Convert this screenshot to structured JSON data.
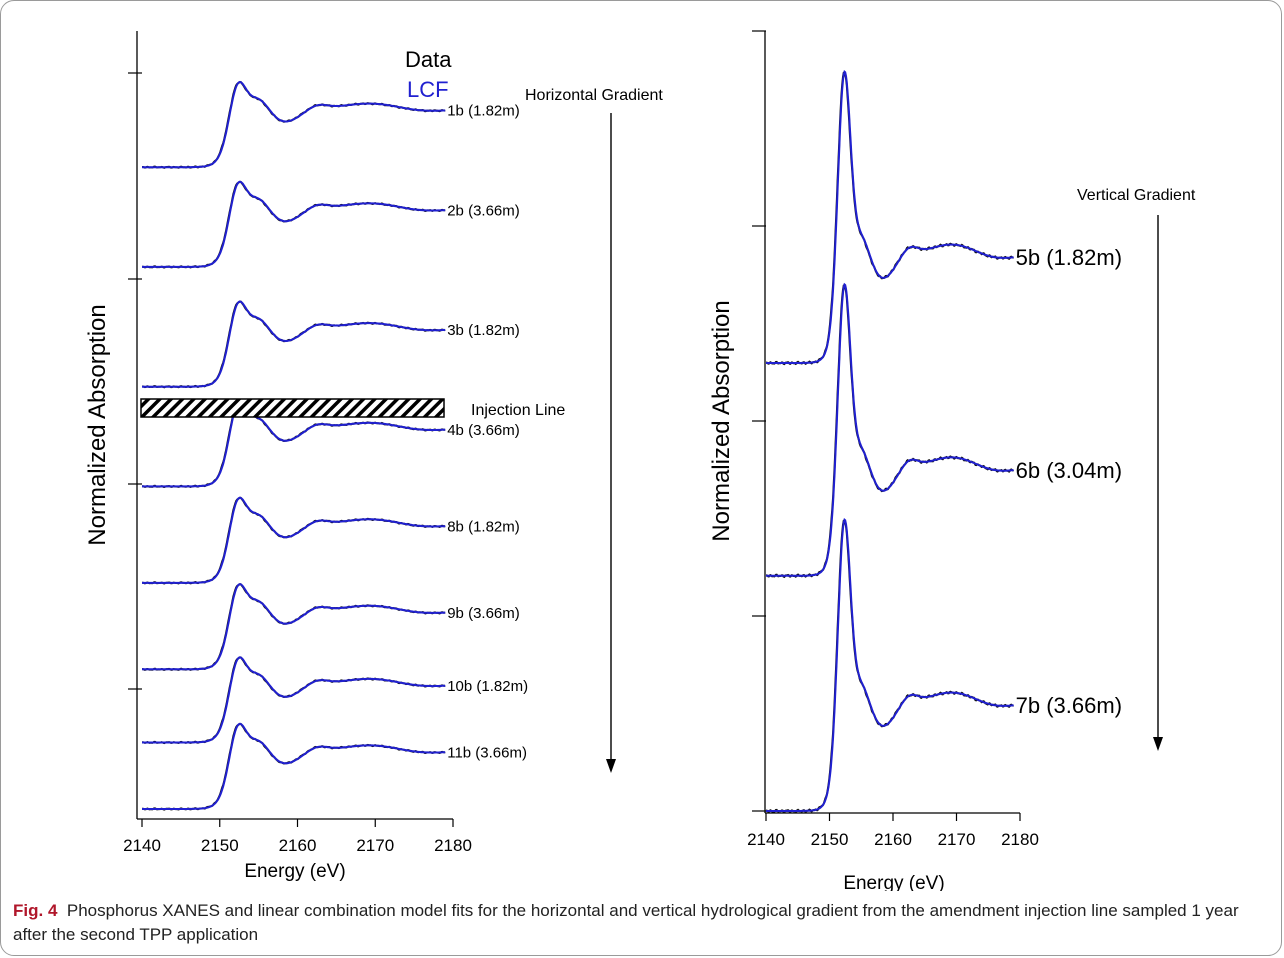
{
  "colors": {
    "data": "#111111",
    "lcf": "#2020d0",
    "axis": "#000000",
    "caption_label": "#b0162a"
  },
  "caption": {
    "label": "Fig. 4",
    "text": "Phosphorus XANES and linear combination model fits for the horizontal and vertical hydrological gradient from the amendment injection line sampled 1 year after the second TPP application"
  },
  "chart_data": [
    {
      "type": "line",
      "xlabel": "Energy (eV)",
      "ylabel": "Normalized Absorption",
      "xlim": [
        2140,
        2180
      ],
      "x_ticks": [
        2140,
        2150,
        2160,
        2170,
        2180
      ],
      "grid": false,
      "legend": {
        "placement": "top-center",
        "entries": [
          {
            "label": "Data",
            "color": "#111111"
          },
          {
            "label": "LCF",
            "color": "#2020d0"
          }
        ]
      },
      "annotations": {
        "gradient": "Horizontal Gradient",
        "injection_line": "Injection Line"
      },
      "series": [
        {
          "name": "1b (1.82m)",
          "edge_peak": 1.55,
          "offset": 4.6
        },
        {
          "name": "2b (3.66m)",
          "edge_peak": 1.55,
          "offset": 3.85
        },
        {
          "name": "3b (1.82m)",
          "edge_peak": 1.55,
          "offset": 3.1
        },
        {
          "name": "4b (3.66m)",
          "edge_peak": 1.55,
          "offset": 2.35
        },
        {
          "name": "8b (1.82m)",
          "edge_peak": 1.55,
          "offset": 1.7
        },
        {
          "name": "9b (3.66m)",
          "edge_peak": 1.55,
          "offset": 1.05
        },
        {
          "name": "10b (1.82m)",
          "edge_peak": 1.55,
          "offset": 0.5
        },
        {
          "name": "11b (3.66m)",
          "edge_peak": 1.55,
          "offset": 0.0
        }
      ]
    },
    {
      "type": "line",
      "xlabel": "Energy (eV)",
      "ylabel": "Normalized Absorption",
      "xlim": [
        2140,
        2180
      ],
      "x_ticks": [
        2140,
        2150,
        2160,
        2170,
        2180
      ],
      "grid": false,
      "annotations": {
        "gradient": "Vertical Gradient"
      },
      "series": [
        {
          "name": "5b (1.82m)",
          "edge_peak": 2.8,
          "offset": 4.0
        },
        {
          "name": "6b (3.04m)",
          "edge_peak": 2.8,
          "offset": 2.1
        },
        {
          "name": "7b (3.66m)",
          "edge_peak": 2.8,
          "offset": 0.0
        }
      ]
    }
  ]
}
